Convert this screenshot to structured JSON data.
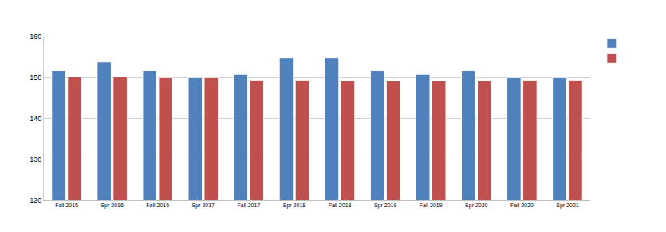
{
  "chart_data": {
    "type": "bar",
    "categories": [
      "Fall 2015",
      "Spr 2016",
      "Fall 2016",
      "Spr 2017",
      "Fall 2017",
      "Spr 2018",
      "Fall 2018",
      "Spr 2019",
      "Fall 2019",
      "Spr 2020",
      "Fall 2020",
      "Spr 2021"
    ],
    "series": [
      {
        "color": "#4f81bd",
        "values": [
          151.7,
          153.8,
          151.7,
          150,
          150.8,
          154.8,
          154.8,
          151.7,
          150.8,
          151.7,
          150,
          150
        ]
      },
      {
        "color": "#c0504d",
        "values": [
          150.2,
          150.2,
          150,
          150,
          149.4,
          149.4,
          149.2,
          149.2,
          149.2,
          149.2,
          149.4,
          149.4
        ]
      }
    ],
    "ylim": [
      120,
      160
    ],
    "yticks": [
      120,
      130,
      140,
      150,
      160
    ],
    "grid": true,
    "legend": "top right"
  }
}
